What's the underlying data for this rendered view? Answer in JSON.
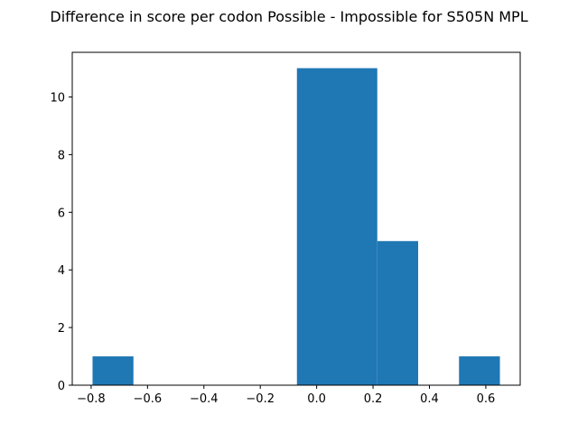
{
  "chart_data": {
    "type": "bar",
    "subtype": "histogram",
    "title": "Difference in score per codon Possible - Impossible for S505N MPL",
    "xlabel": "",
    "ylabel": "",
    "bins": [
      {
        "x0": -0.795,
        "x1": -0.65,
        "count": 1
      },
      {
        "x0": -0.65,
        "x1": -0.505,
        "count": 0
      },
      {
        "x0": -0.505,
        "x1": -0.36,
        "count": 0
      },
      {
        "x0": -0.36,
        "x1": -0.215,
        "count": 0
      },
      {
        "x0": -0.215,
        "x1": -0.07,
        "count": 0
      },
      {
        "x0": -0.07,
        "x1": 0.215,
        "count": 11
      },
      {
        "x0": 0.215,
        "x1": 0.36,
        "count": 5
      },
      {
        "x0": 0.36,
        "x1": 0.505,
        "count": 0
      },
      {
        "x0": 0.505,
        "x1": 0.65,
        "count": 1
      }
    ],
    "xlim": [
      -0.867,
      0.722
    ],
    "ylim": [
      0,
      11.55
    ],
    "xticks": [
      {
        "value": -0.8,
        "label": "−0.8"
      },
      {
        "value": -0.6,
        "label": "−0.6"
      },
      {
        "value": -0.4,
        "label": "−0.4"
      },
      {
        "value": -0.2,
        "label": "−0.2"
      },
      {
        "value": 0.0,
        "label": "0.0"
      },
      {
        "value": 0.2,
        "label": "0.2"
      },
      {
        "value": 0.4,
        "label": "0.4"
      },
      {
        "value": 0.6,
        "label": "0.6"
      }
    ],
    "yticks": [
      {
        "value": 0,
        "label": "0"
      },
      {
        "value": 2,
        "label": "2"
      },
      {
        "value": 4,
        "label": "4"
      },
      {
        "value": 6,
        "label": "6"
      },
      {
        "value": 8,
        "label": "8"
      },
      {
        "value": 10,
        "label": "10"
      }
    ],
    "bar_color": "#1f77b4",
    "grid": false,
    "legend": "none"
  }
}
